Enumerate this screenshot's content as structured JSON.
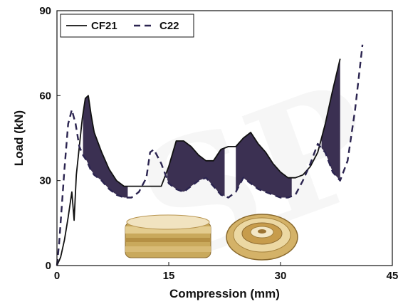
{
  "chart_data": {
    "type": "line",
    "xlabel": "Compression (mm)",
    "ylabel": "Load (kN)",
    "xlim": [
      0,
      45
    ],
    "ylim": [
      0,
      90
    ],
    "xticks": [
      0,
      15,
      30,
      45
    ],
    "yticks": [
      0,
      30,
      60,
      90
    ],
    "grid": false,
    "legend_position": "top-left",
    "fill_color": "#3b3052",
    "series": [
      {
        "name": "CF21",
        "style": "solid",
        "color": "#111111",
        "x": [
          0,
          0.5,
          1,
          1.5,
          2,
          2.3,
          2.6,
          3,
          3.4,
          3.8,
          4.2,
          4.6,
          5,
          6,
          7,
          8,
          9,
          10,
          11,
          12,
          13,
          14,
          15,
          16,
          17,
          18,
          19,
          20,
          21,
          22,
          23,
          24,
          25,
          26,
          27,
          28,
          29,
          30,
          31,
          32,
          33,
          34,
          35,
          36,
          37,
          38
        ],
        "y": [
          0,
          3,
          9,
          17,
          26,
          16,
          32,
          42,
          52,
          59,
          60,
          53,
          47,
          40,
          34,
          30,
          28,
          28,
          28,
          28,
          28,
          28,
          35,
          44,
          44,
          42,
          39,
          37,
          37,
          41,
          42,
          42,
          45,
          47,
          43,
          40,
          36,
          33,
          31,
          31,
          32,
          35,
          40,
          50,
          62,
          73
        ]
      },
      {
        "name": "C22",
        "style": "dashed",
        "color": "#2b2450",
        "x": [
          0,
          0.3,
          1,
          1.5,
          2,
          2.5,
          3,
          3.5,
          4,
          4.5,
          5,
          6,
          7,
          8,
          9,
          10,
          11,
          12,
          12.5,
          13,
          14,
          15,
          16,
          17,
          18,
          19,
          20,
          21,
          22,
          23,
          24,
          25,
          26,
          27,
          28,
          29,
          30,
          31,
          32,
          33,
          34,
          35,
          36,
          37,
          38,
          39,
          40,
          41
        ],
        "y": [
          0,
          8,
          34,
          50,
          55,
          50,
          42,
          39,
          37,
          34,
          32,
          30,
          27,
          25,
          24,
          24,
          26,
          31,
          40,
          41,
          36,
          29,
          27,
          26,
          28,
          30,
          31,
          28,
          25,
          24,
          26,
          31,
          29,
          27,
          26,
          25,
          24,
          24,
          25,
          30,
          36,
          43,
          40,
          33,
          30,
          37,
          55,
          78
        ]
      }
    ],
    "filled_regions": [
      [
        3.5,
        9.5
      ],
      [
        14.8,
        22.5
      ],
      [
        24,
        31.5
      ],
      [
        35.5,
        38
      ]
    ]
  },
  "image_labels": [
    "CF21 specimen photo",
    "C22 specimen photo"
  ],
  "watermark_text": "SP"
}
